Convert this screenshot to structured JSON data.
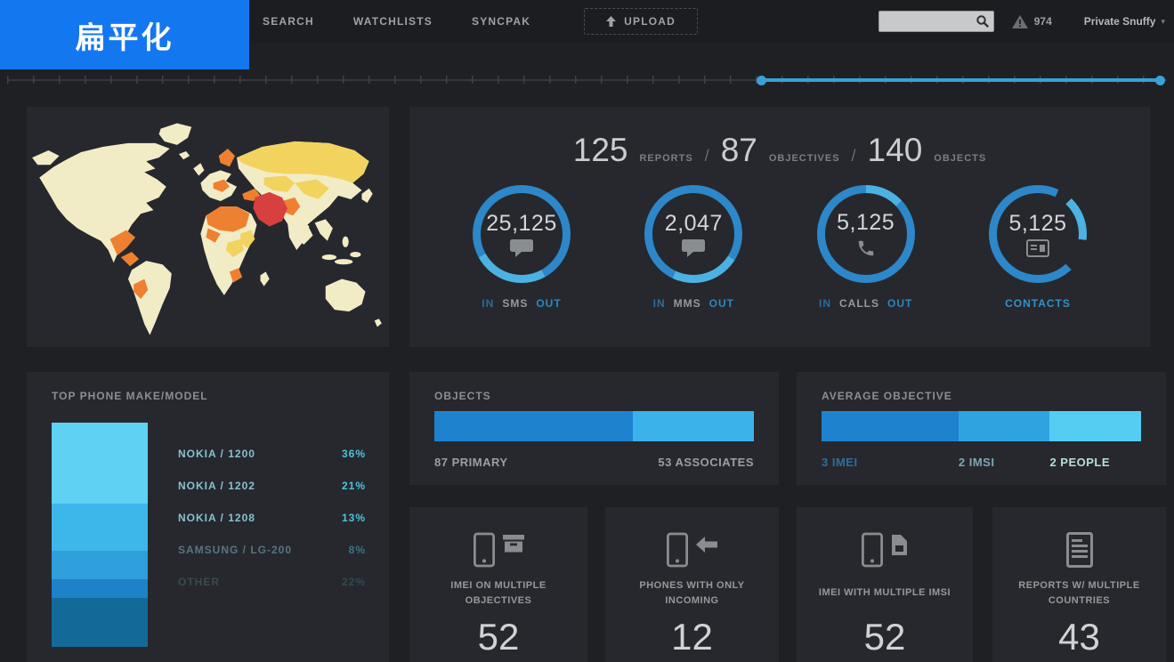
{
  "banner": {
    "label": "扁平化"
  },
  "topbar": {
    "nav": [
      {
        "label": "SEARCH"
      },
      {
        "label": "WATCHLISTS"
      },
      {
        "label": "SYNCPAK"
      }
    ],
    "upload": {
      "label": "UPLOAD"
    },
    "search": {
      "value": "",
      "placeholder": ""
    },
    "alerts": {
      "count": "974"
    },
    "user": {
      "name": "Private Snuffy"
    }
  },
  "summary": {
    "separator": "/",
    "items": [
      {
        "value": "125",
        "label": "REPORTS"
      },
      {
        "value": "87",
        "label": "OBJECTIVES"
      },
      {
        "value": "140",
        "label": "OBJECTS"
      }
    ]
  },
  "gauges": [
    {
      "value": "25,125",
      "icon": "speech-bubble-icon",
      "in_label": "IN",
      "mid_label": "SMS",
      "out_label": "OUT"
    },
    {
      "value": "2,047",
      "icon": "speech-bubble-icon",
      "in_label": "IN",
      "mid_label": "MMS",
      "out_label": "OUT"
    },
    {
      "value": "5,125",
      "icon": "phone-call-icon",
      "in_label": "IN",
      "mid_label": "CALLS",
      "out_label": "OUT"
    },
    {
      "value": "5,125",
      "icon": "contact-card-icon",
      "single_label": "CONTACTS"
    }
  ],
  "phone_models": {
    "title": "TOP PHONE MAKE/MODEL",
    "rows": [
      {
        "label": "NOKIA / 1200",
        "pct": "36%",
        "value": 36,
        "color": "#5fd1f3"
      },
      {
        "label": "NOKIA / 1202",
        "pct": "21%",
        "value": 21,
        "color": "#3db6ea"
      },
      {
        "label": "NOKIA / 1208",
        "pct": "13%",
        "value": 13,
        "color": "#2f9fdc"
      },
      {
        "label": "SAMSUNG / LG-200",
        "pct": "8%",
        "value": 8,
        "color": "#1e82c8"
      },
      {
        "label": "OTHER",
        "pct": "22%",
        "value": 22,
        "color": "#136a99"
      }
    ]
  },
  "objects_panel": {
    "title": "OBJECTS",
    "segments": [
      {
        "label": "87 PRIMARY",
        "value": 87,
        "color": "#1e82cf"
      },
      {
        "label": "53 ASSOCIATES",
        "value": 53,
        "color": "#3cb2ea"
      }
    ]
  },
  "average_objective": {
    "title": "AVERAGE OBJECTIVE",
    "segments": [
      {
        "label": "3 IMEI",
        "value": 3,
        "color": "#1e82cf",
        "label_color": "#2d6f9e"
      },
      {
        "label": "2 IMSI",
        "value": 2,
        "color": "#2fa3e0",
        "label_color": "#7fa6b4"
      },
      {
        "label": "2 PEOPLE",
        "value": 2,
        "color": "#55ccf2",
        "label_color": "#b9dede"
      }
    ]
  },
  "stat_cards": [
    {
      "label": "IMEI ON MULTIPLE OBJECTIVES",
      "value": "52",
      "icons": [
        "smartphone-icon",
        "box-icon"
      ]
    },
    {
      "label": "PHONES WITH ONLY INCOMING",
      "value": "12",
      "icons": [
        "smartphone-icon",
        "arrow-left-icon"
      ]
    },
    {
      "label": "IMEI WITH MULTIPLE IMSI",
      "value": "52",
      "icons": [
        "smartphone-icon",
        "sim-card-icon"
      ]
    },
    {
      "label": "REPORTS W/ MULTIPLE COUNTRIES",
      "value": "43",
      "icons": [
        "report-icon"
      ]
    }
  ],
  "colors": {
    "banner_blue": "#1377f0",
    "accent_blue": "#2d87c9",
    "accent_light_blue": "#4cb2e2",
    "timeline_blue": "#3aa0d8",
    "panel_bg": "#26282d"
  }
}
